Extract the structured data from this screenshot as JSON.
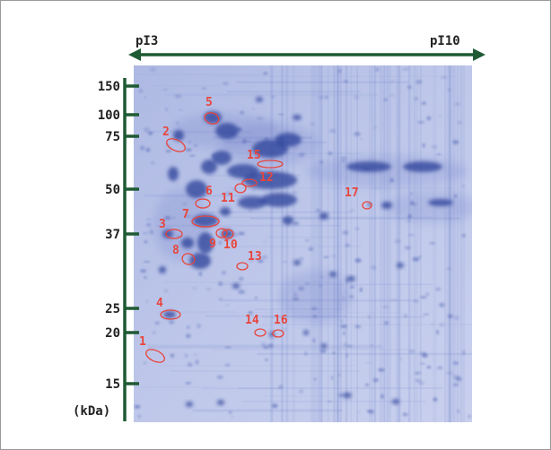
{
  "figure": {
    "ph_axis": {
      "left_label": "pI3",
      "right_label": "pI10"
    },
    "mw_axis": {
      "unit_label": "(kDa)",
      "ticks": [
        {
          "label": "150",
          "kda": 150
        },
        {
          "label": "100",
          "kda": 100
        },
        {
          "label": "75",
          "kda": 75
        },
        {
          "label": "50",
          "kda": 50
        },
        {
          "label": "37",
          "kda": 37
        },
        {
          "label": "25",
          "kda": 25
        },
        {
          "label": "20",
          "kda": 20
        },
        {
          "label": "15",
          "kda": 15
        }
      ]
    },
    "spots": [
      {
        "label": "1"
      },
      {
        "label": "2"
      },
      {
        "label": "3"
      },
      {
        "label": "4"
      },
      {
        "label": "5"
      },
      {
        "label": "6"
      },
      {
        "label": "7"
      },
      {
        "label": "8"
      },
      {
        "label": "9"
      },
      {
        "label": "10"
      },
      {
        "label": "11"
      },
      {
        "label": "12"
      },
      {
        "label": "13"
      },
      {
        "label": "14"
      },
      {
        "label": "15"
      },
      {
        "label": "16"
      },
      {
        "label": "17"
      }
    ],
    "colors": {
      "axis": "#1f5a34",
      "marker": "#e8453c",
      "gel_background": "#b9c3e6",
      "spot": "#3a4fa8"
    }
  }
}
